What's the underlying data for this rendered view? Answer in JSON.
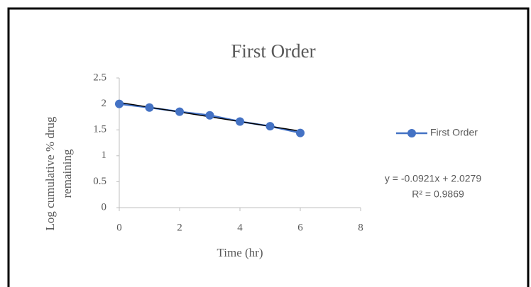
{
  "chart_data": {
    "type": "line",
    "title": "First Order",
    "xlabel": "Time (hr)",
    "ylabel": [
      "Log cumulative % drug",
      "remaining"
    ],
    "x": [
      0,
      1,
      2,
      3,
      4,
      5,
      6
    ],
    "series": [
      {
        "name": "First Order",
        "color": "#4472c4",
        "values": [
          2.0,
          1.93,
          1.85,
          1.78,
          1.66,
          1.57,
          1.44
        ]
      }
    ],
    "xlim": [
      0,
      8
    ],
    "xticks": [
      0,
      2,
      4,
      6,
      8
    ],
    "ylim": [
      0,
      2.5
    ],
    "yticks": [
      0,
      0.5,
      1,
      1.5,
      2,
      2.5
    ],
    "grid": false,
    "legend": "right",
    "trendline": {
      "slope": -0.0921,
      "intercept": 2.0279,
      "color": "#000000",
      "equation": "y = -0.0921x + 2.0279",
      "r2": "R² = 0.9869"
    }
  }
}
